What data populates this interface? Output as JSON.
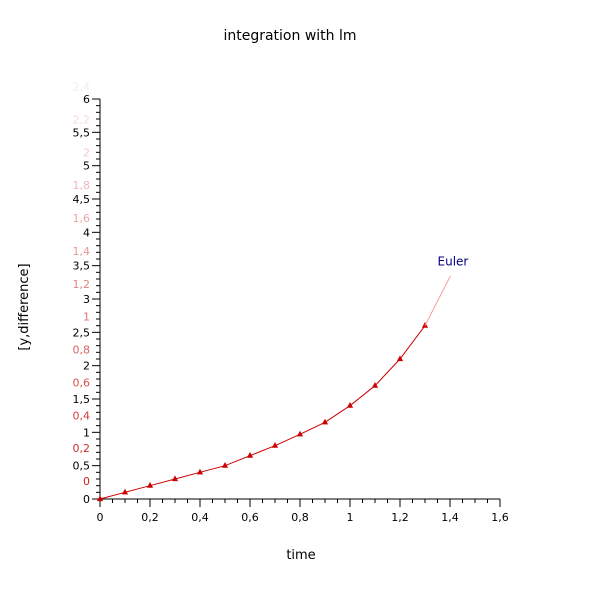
{
  "chart_data": {
    "type": "line",
    "title": "integration with lm",
    "xlabel": "time",
    "ylabel": "[y,difference]",
    "xlim": [
      0,
      1.6
    ],
    "ylim": [
      0,
      6
    ],
    "x_ticks": [
      "0",
      "0,2",
      "0,4",
      "0,6",
      "0,8",
      "1",
      "1,2",
      "1,4",
      "1,6"
    ],
    "y_ticks": [
      "0",
      "0,5",
      "1",
      "1,5",
      "2",
      "2,5",
      "3",
      "3,5",
      "4",
      "4,5",
      "5",
      "5,5",
      "6"
    ],
    "y2_ticks": [
      "0",
      "0,2",
      "0,4",
      "0,6",
      "0,8",
      "1",
      "1,2",
      "1,4",
      "1,6",
      "1,8",
      "2",
      "2,2",
      "2,4"
    ],
    "grid": false,
    "colors": {
      "series": "#cc0000",
      "annotation": "#00007f",
      "leader": "#ff9999"
    },
    "annotation": {
      "text": "Euler",
      "x": 1.35,
      "y": 3.5
    },
    "series": [
      {
        "x": [
          0,
          0.1,
          0.2,
          0.3,
          0.4,
          0.5,
          0.6,
          0.7,
          0.8,
          0.9,
          1.0,
          1.1,
          1.2,
          1.3
        ],
        "values": [
          0,
          0.1,
          0.2,
          0.3,
          0.4,
          0.5,
          0.65,
          0.8,
          0.97,
          1.15,
          1.4,
          1.7,
          2.1,
          2.6
        ]
      }
    ]
  }
}
